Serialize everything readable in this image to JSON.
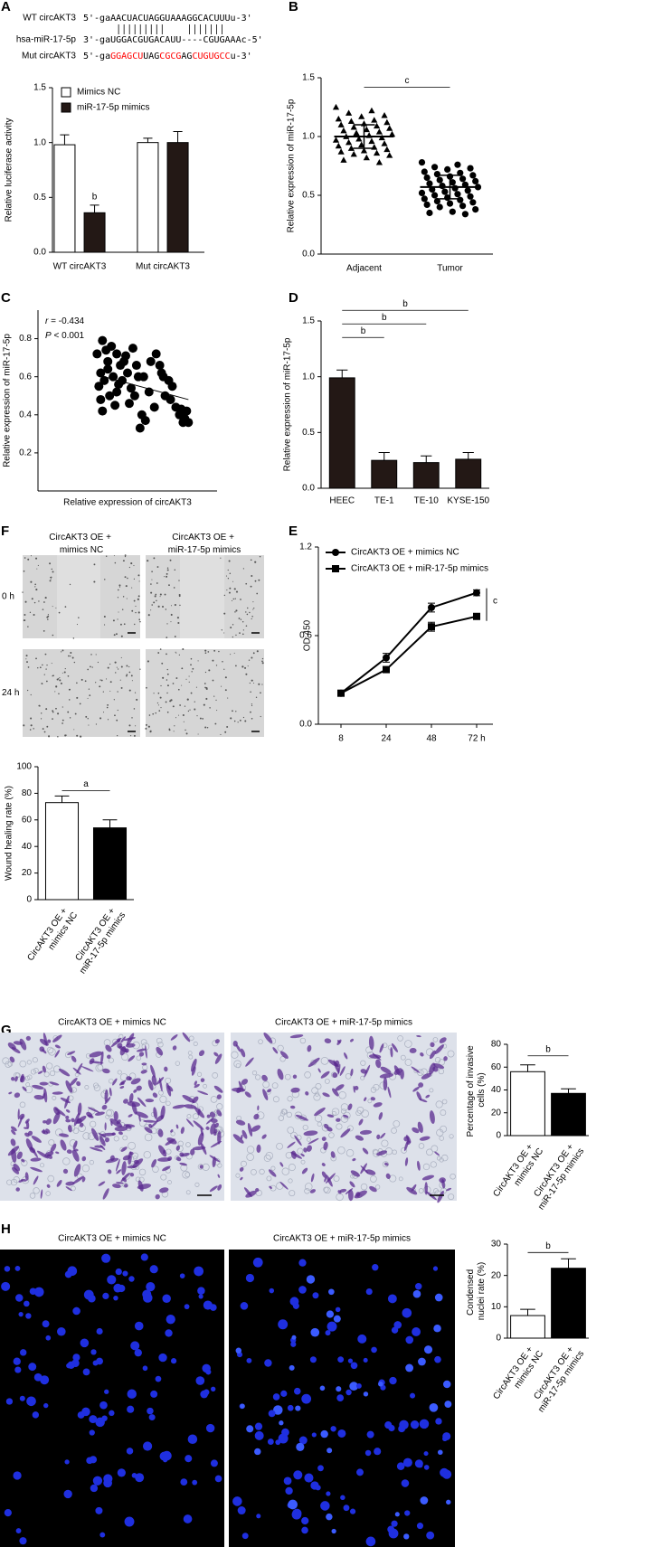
{
  "panel_labels": [
    "A",
    "B",
    "C",
    "D",
    "F",
    "E",
    "G",
    "H"
  ],
  "sequences": [
    {
      "name": "WT circAKT3",
      "parts": [
        {
          "text": "5'-gaAACUACUAGGUAAAGGCACUUUu-3'"
        }
      ]
    },
    {
      "name": "hsa-miR-17-5p",
      "parts": [
        {
          "text": "3'-gaUGGACGUGACAUU----CGUGAAAc-5'"
        }
      ]
    },
    {
      "name": "Mut circAKT3",
      "parts": [
        {
          "text": "5'-ga"
        },
        {
          "text": "GGAGCU",
          "color": "#ff0000"
        },
        {
          "text": "UAG"
        },
        {
          "text": "CGCG",
          "color": "#ff0000"
        },
        {
          "text": "AG"
        },
        {
          "text": "CUGUGCC",
          "color": "#ff0000"
        },
        {
          "text": "u-3'"
        }
      ]
    }
  ],
  "wound_healing": {
    "columns": [
      "CircAKT3 OE + mimics NC",
      "CircAKT3 OE + miR-17-5p mimics"
    ],
    "rows": [
      "0 h",
      "24 h"
    ]
  },
  "transwell": {
    "columns": [
      "CircAKT3 OE + mimics NC",
      "CircAKT3 OE + miR-17-5p mimics"
    ]
  },
  "apoptosis": {
    "columns": [
      "CircAKT3 OE + mimics NC",
      "CircAKT3 OE + miR-17-5p mimics"
    ]
  },
  "chart_data": [
    {
      "type": "bar",
      "ylabel": "Relative luciferase activity",
      "categories": [
        "WT circAKT3",
        "Mut circAKT3"
      ],
      "series": [
        {
          "name": "Mimics NC",
          "color": "#ffffff",
          "values": [
            0.98,
            1.0
          ],
          "errors": [
            0.09,
            0.04
          ]
        },
        {
          "name": "miR-17-5p mimics",
          "color": "#231815",
          "values": [
            0.36,
            1.0
          ],
          "errors": [
            0.07,
            0.1
          ]
        }
      ],
      "ylim": [
        0,
        1.5
      ],
      "yticks": [
        {
          "value": 0,
          "label": "0.0"
        },
        0.5,
        {
          "value": 1,
          "label": "1.0"
        },
        1.5
      ],
      "legend": "upper left",
      "annotations": [
        {
          "label": "b",
          "category": "WT circAKT3",
          "series": "miR-17-5p mimics"
        }
      ]
    },
    {
      "type": "strip",
      "ylabel": "Relative expression of miR-17-5p",
      "categories": [
        "Adjacent",
        "Tumor"
      ],
      "color": "#000000",
      "groups": [
        {
          "marker": "triangle",
          "values": [
            1.25,
            1.22,
            1.2,
            1.18,
            1.17,
            1.15,
            1.14,
            1.13,
            1.12,
            1.11,
            1.1,
            1.09,
            1.08,
            1.07,
            1.06,
            1.05,
            1.04,
            1.03,
            1.02,
            1.01,
            1.0,
            0.99,
            0.98,
            0.97,
            0.96,
            0.95,
            0.94,
            0.93,
            0.92,
            0.91,
            0.9,
            0.89,
            0.88,
            0.87,
            0.86,
            0.85,
            0.84,
            0.82,
            0.8,
            0.78
          ]
        },
        {
          "marker": "circle",
          "values": [
            0.78,
            0.76,
            0.74,
            0.73,
            0.72,
            0.7,
            0.69,
            0.68,
            0.67,
            0.66,
            0.65,
            0.64,
            0.63,
            0.62,
            0.61,
            0.6,
            0.59,
            0.58,
            0.57,
            0.56,
            0.55,
            0.54,
            0.53,
            0.52,
            0.51,
            0.5,
            0.49,
            0.48,
            0.47,
            0.46,
            0.45,
            0.44,
            0.43,
            0.42,
            0.41,
            0.4,
            0.38,
            0.36,
            0.35,
            0.34
          ]
        }
      ],
      "means": [
        1.0,
        0.57
      ],
      "sd": [
        0.1,
        0.1
      ],
      "ylim": [
        0,
        1.5
      ],
      "yticks": [
        {
          "value": 0,
          "label": "0.0"
        },
        0.5,
        {
          "value": 1,
          "label": "1.0"
        },
        1.5
      ],
      "significance": [
        {
          "label": "c",
          "between": [
            "Adjacent",
            "Tumor"
          ]
        }
      ]
    },
    {
      "type": "scatter",
      "ylabel": "Relative expression of miR-17-5p",
      "xlabel": "Relative expression of circAKT3",
      "color": "#000000",
      "x": [
        3.3,
        3.6,
        3.5,
        3.8,
        4.1,
        3.4,
        3.9,
        4.4,
        4.6,
        3.7,
        4.2,
        4.8,
        5.0,
        5.3,
        5.6,
        3.5,
        4.0,
        4.5,
        4.9,
        5.2,
        5.5,
        5.9,
        6.3,
        6.6,
        7.0,
        3.6,
        4.3,
        4.7,
        5.1,
        5.8,
        6.2,
        6.8,
        7.3,
        7.7,
        8.0,
        8.2,
        8.4,
        3.9,
        4.4,
        5.4,
        6.0,
        6.5,
        7.1,
        7.5,
        7.9,
        8.3,
        5.7,
        6.9,
        7.4,
        8.1
      ],
      "y": [
        0.72,
        0.79,
        0.62,
        0.74,
        0.76,
        0.55,
        0.68,
        0.72,
        0.66,
        0.58,
        0.6,
        0.68,
        0.62,
        0.75,
        0.6,
        0.48,
        0.5,
        0.56,
        0.71,
        0.54,
        0.66,
        0.6,
        0.68,
        0.72,
        0.6,
        0.42,
        0.45,
        0.58,
        0.46,
        0.4,
        0.52,
        0.66,
        0.58,
        0.44,
        0.43,
        0.38,
        0.36,
        0.64,
        0.52,
        0.5,
        0.37,
        0.44,
        0.5,
        0.55,
        0.4,
        0.42,
        0.33,
        0.62,
        0.48,
        0.36
      ],
      "xlim": [
        0,
        10
      ],
      "ylim": [
        0,
        0.95
      ],
      "yticks": [
        0.2,
        0.4,
        0.6,
        0.8
      ],
      "trendline": {
        "x": [
          3.3,
          8.4
        ],
        "y": [
          0.61,
          0.48
        ]
      },
      "annotations": [
        "r = -0.434",
        "P < 0.001"
      ]
    },
    {
      "type": "bar",
      "ylabel": "Relative expression of miR-17-5p",
      "categories": [
        "HEEC",
        "TE-1",
        "TE-10",
        "KYSE-150"
      ],
      "values": [
        0.99,
        0.25,
        0.23,
        0.26
      ],
      "errors": [
        0.07,
        0.07,
        0.06,
        0.06
      ],
      "color": "#231815",
      "ylim": [
        0,
        1.5
      ],
      "yticks": [
        {
          "value": 0,
          "label": "0.0"
        },
        0.5,
        {
          "value": 1,
          "label": "1.0"
        },
        1.5
      ],
      "significance": [
        {
          "label": "b",
          "between": [
            "HEEC",
            "TE-1"
          ]
        },
        {
          "label": "b",
          "between": [
            "HEEC",
            "TE-10"
          ]
        },
        {
          "label": "b",
          "between": [
            "HEEC",
            "KYSE-150"
          ]
        }
      ]
    },
    {
      "type": "line",
      "ylabel": "OD 450",
      "categories": [
        "8",
        "24",
        "48",
        "72 h"
      ],
      "series": [
        {
          "name": "CircAKT3 OE + mimics NC",
          "marker": "circle",
          "color": "#000000",
          "values": [
            0.21,
            0.45,
            0.79,
            0.89
          ],
          "errors": [
            0.01,
            0.03,
            0.03,
            0.02
          ]
        },
        {
          "name": "CircAKT3 OE + miR-17-5p mimics",
          "marker": "square",
          "color": "#000000",
          "values": [
            0.21,
            0.37,
            0.66,
            0.73
          ],
          "errors": [
            0.01,
            0.01,
            0.03,
            0.01
          ]
        }
      ],
      "ylim": [
        0,
        1.2
      ],
      "yticks": [
        {
          "value": 0,
          "label": "0.0"
        },
        0.6,
        1.2
      ],
      "legend": "upper left",
      "significance": [
        {
          "label": "c",
          "at": "72 h"
        }
      ]
    },
    {
      "type": "bar",
      "ylabel": "Wound healing rate (%)",
      "categories": [
        "CircAKT3 OE + mimics NC",
        "CircAKT3 OE + miR-17-5p mimics"
      ],
      "values": [
        73,
        54
      ],
      "errors": [
        5,
        6
      ],
      "colors": [
        "#ffffff",
        "#000000"
      ],
      "ylim": [
        0,
        100
      ],
      "yticks": [
        0,
        20,
        40,
        60,
        80,
        100
      ],
      "significance": [
        {
          "label": "a",
          "between": [
            "CircAKT3 OE + mimics NC",
            "CircAKT3 OE + miR-17-5p mimics"
          ]
        }
      ]
    },
    {
      "type": "bar",
      "ylabel": "Percentage of invasive cells (%)",
      "categories": [
        "CircAKT3 OE + mimics NC",
        "CircAKT3 OE + miR-17-5p mimics"
      ],
      "values": [
        56,
        37
      ],
      "errors": [
        6,
        4
      ],
      "colors": [
        "#ffffff",
        "#000000"
      ],
      "ylim": [
        0,
        80
      ],
      "yticks": [
        0,
        20,
        40,
        60,
        80
      ],
      "significance": [
        {
          "label": "b",
          "between": [
            "CircAKT3 OE + mimics NC",
            "CircAKT3 OE + miR-17-5p mimics"
          ]
        }
      ]
    },
    {
      "type": "bar",
      "ylabel": "Condensed nuclei rate (%)",
      "categories": [
        "CircAKT3 OE + mimics NC",
        "CircAKT3 OE + miR-17-5p mimics"
      ],
      "values": [
        7.2,
        22.3
      ],
      "errors": [
        2,
        3
      ],
      "colors": [
        "#ffffff",
        "#000000"
      ],
      "ylim": [
        0,
        30
      ],
      "yticks": [
        0,
        10,
        20,
        30
      ],
      "significance": [
        {
          "label": "b",
          "between": [
            "CircAKT3 OE + mimics NC",
            "CircAKT3 OE + miR-17-5p mimics"
          ]
        }
      ]
    }
  ]
}
